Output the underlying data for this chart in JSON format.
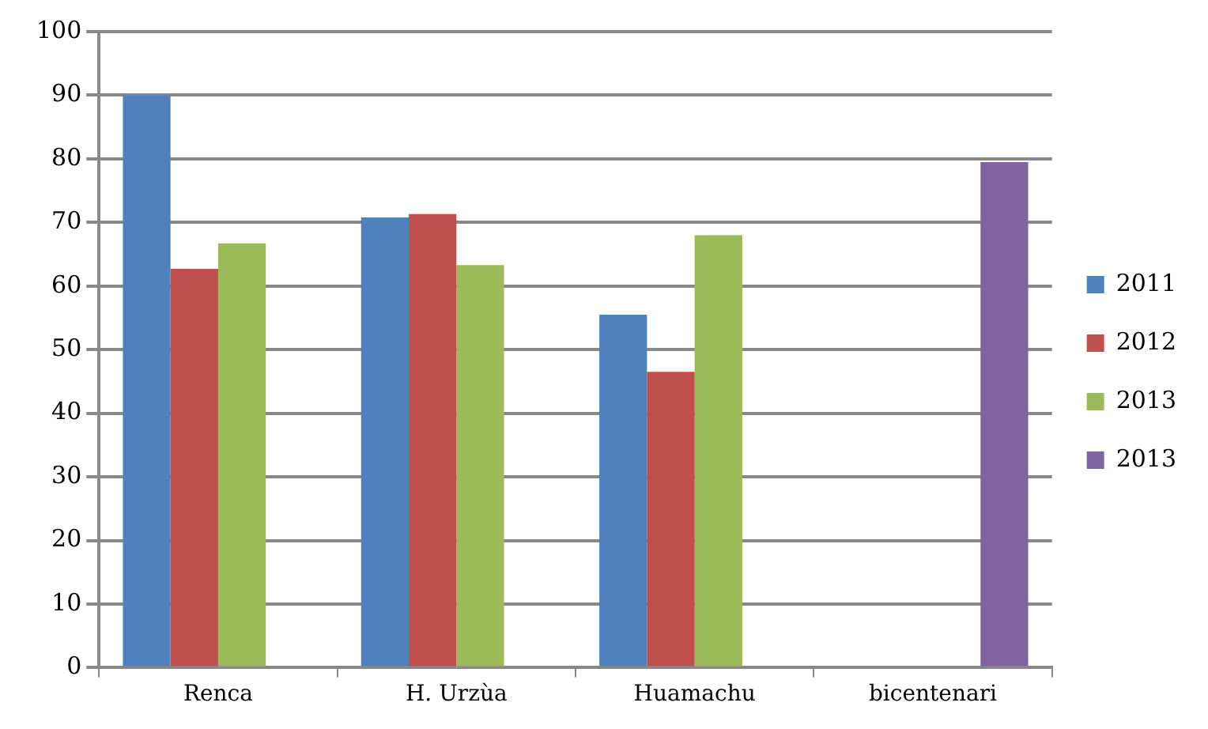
{
  "chart_data": {
    "type": "bar",
    "categories": [
      "Renca",
      "H. Urzùa",
      "Huamachu",
      "bicentenari"
    ],
    "series": [
      {
        "name": "2011",
        "color": "#4f81bd",
        "values": [
          90,
          70.8,
          55.5,
          null
        ]
      },
      {
        "name": "2012",
        "color": "#c0504d",
        "values": [
          62.7,
          71.3,
          46.5,
          null
        ]
      },
      {
        "name": "2013",
        "color": "#9bbb59",
        "values": [
          66.7,
          63.3,
          68,
          null
        ]
      },
      {
        "name": "2013",
        "color": "#8064a2",
        "values": [
          null,
          null,
          null,
          79.5
        ]
      }
    ],
    "ylim": [
      0,
      100
    ],
    "yticks": [
      0,
      10,
      20,
      30,
      40,
      50,
      60,
      70,
      80,
      90,
      100
    ],
    "grid": "y",
    "legend": "right"
  }
}
